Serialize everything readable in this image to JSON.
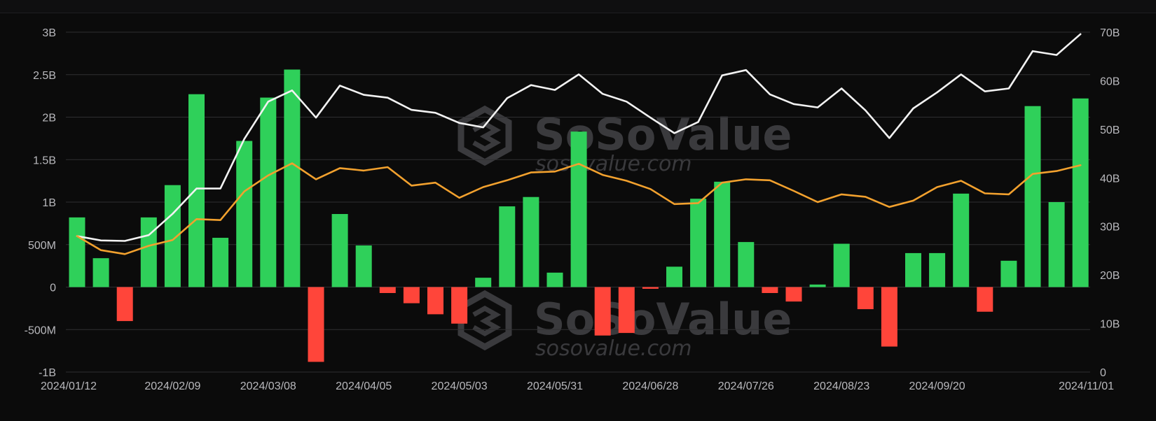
{
  "chart_data": {
    "type": "bar",
    "title": "",
    "xlabel": "",
    "ylabel": "",
    "grid": true,
    "colors": {
      "positive_bar": "#2fd05a",
      "negative_bar": "#ff453a",
      "white_line": "#f2f2f2",
      "orange_line": "#f2a12e",
      "background": "#0b0b0b",
      "grid": "#2f2f32"
    },
    "watermark": {
      "name": "SoSoValue",
      "url": "sosovalue.com"
    },
    "x_tick_labels": [
      "2024/01/12",
      "2024/02/09",
      "2024/03/08",
      "2024/04/05",
      "2024/05/03",
      "2024/05/31",
      "2024/06/28",
      "2024/07/26",
      "2024/08/23",
      "2024/09/20",
      "2024/11/01"
    ],
    "left_axis": {
      "ylim": [
        -1000000000,
        3000000000
      ],
      "ticks": [
        -1000000000,
        -500000000,
        0,
        500000000,
        1000000000,
        1500000000,
        2000000000,
        2500000000,
        3000000000
      ],
      "tick_labels": [
        "-1B",
        "-500M",
        "0",
        "500M",
        "1B",
        "1.5B",
        "2B",
        "2.5B",
        "3B"
      ]
    },
    "right_axis": {
      "ylim": [
        0,
        70000000000
      ],
      "ticks": [
        0,
        10000000000,
        20000000000,
        30000000000,
        40000000000,
        50000000000,
        60000000000,
        70000000000
      ],
      "tick_labels": [
        "0",
        "10B",
        "20B",
        "30B",
        "40B",
        "50B",
        "60B",
        "70B"
      ]
    },
    "x": [
      "2024/01/12",
      "2024/01/19",
      "2024/01/26",
      "2024/02/02",
      "2024/02/09",
      "2024/02/16",
      "2024/02/23",
      "2024/03/01",
      "2024/03/08",
      "2024/03/15",
      "2024/03/22",
      "2024/03/29",
      "2024/04/05",
      "2024/04/12",
      "2024/04/19",
      "2024/04/26",
      "2024/05/03",
      "2024/05/10",
      "2024/05/17",
      "2024/05/24",
      "2024/05/31",
      "2024/06/07",
      "2024/06/14",
      "2024/06/21",
      "2024/06/28",
      "2024/07/05",
      "2024/07/12",
      "2024/07/19",
      "2024/07/26",
      "2024/08/02",
      "2024/08/09",
      "2024/08/16",
      "2024/08/23",
      "2024/08/30",
      "2024/09/06",
      "2024/09/13",
      "2024/09/20",
      "2024/09/27",
      "2024/10/04",
      "2024/10/11",
      "2024/10/18",
      "2024/10/25",
      "2024/11/01"
    ],
    "series": [
      {
        "type": "bar",
        "axis": "left",
        "values": [
          820000000,
          340000000,
          -400000000,
          820000000,
          1200000000,
          2270000000,
          580000000,
          1720000000,
          2230000000,
          2560000000,
          -880000000,
          860000000,
          490000000,
          -70000000,
          -190000000,
          -320000000,
          -430000000,
          110000000,
          950000000,
          1060000000,
          170000000,
          1830000000,
          -570000000,
          -540000000,
          -20000000,
          240000000,
          1040000000,
          1240000000,
          530000000,
          -70000000,
          -170000000,
          30000000,
          510000000,
          -260000000,
          -700000000,
          400000000,
          400000000,
          1100000000,
          -290000000,
          310000000,
          2130000000,
          1000000000,
          2220000000
        ]
      },
      {
        "type": "line",
        "axis": "right",
        "color": "#f2f2f2",
        "values": [
          28000000000,
          27100000000,
          27000000000,
          28200000000,
          32600000000,
          37800000000,
          37800000000,
          48000000000,
          55700000000,
          58000000000,
          52400000000,
          59000000000,
          57100000000,
          56500000000,
          54000000000,
          53400000000,
          51300000000,
          50400000000,
          56400000000,
          59100000000,
          58100000000,
          61300000000,
          57300000000,
          55700000000,
          52400000000,
          49200000000,
          51500000000,
          61100000000,
          62200000000,
          57200000000,
          55200000000,
          54500000000,
          58400000000,
          53900000000,
          48200000000,
          54300000000,
          57600000000,
          61300000000,
          57800000000,
          58400000000,
          66100000000,
          65300000000,
          69600000000
        ]
      },
      {
        "type": "line",
        "axis": "right",
        "color": "#f2a12e",
        "values": [
          28000000000,
          25100000000,
          24300000000,
          26000000000,
          27200000000,
          31500000000,
          31300000000,
          37200000000,
          40500000000,
          43000000000,
          39700000000,
          42000000000,
          41500000000,
          42200000000,
          38400000000,
          39000000000,
          35900000000,
          38100000000,
          39500000000,
          41100000000,
          41300000000,
          42900000000,
          40600000000,
          39400000000,
          37700000000,
          34600000000,
          34800000000,
          39000000000,
          39700000000,
          39500000000,
          37300000000,
          35000000000,
          36600000000,
          36100000000,
          34000000000,
          35300000000,
          38100000000,
          39400000000,
          36800000000,
          36600000000,
          40800000000,
          41400000000,
          42600000000
        ]
      }
    ]
  }
}
